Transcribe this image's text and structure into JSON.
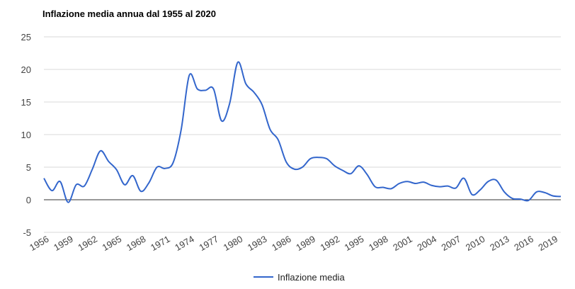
{
  "chart_data": {
    "type": "line",
    "title": "Inflazione media annua dal 1955 al 2020",
    "xlabel": "",
    "ylabel": "",
    "ylim": [
      -5,
      25
    ],
    "xlim": [
      1956,
      2020
    ],
    "yticks": [
      "25",
      "20",
      "15",
      "10",
      "5",
      "0",
      "-5"
    ],
    "ytick_values": [
      25,
      20,
      15,
      10,
      5,
      0,
      -5
    ],
    "xticks": [
      "1956",
      "1959",
      "1962",
      "1965",
      "1968",
      "1971",
      "1974",
      "1977",
      "1980",
      "1983",
      "1986",
      "1989",
      "1992",
      "1995",
      "1998",
      "2001",
      "2004",
      "2007",
      "2010",
      "2013",
      "2016",
      "2019"
    ],
    "xtick_values": [
      1956,
      1959,
      1962,
      1965,
      1968,
      1971,
      1974,
      1977,
      1980,
      1983,
      1986,
      1989,
      1992,
      1995,
      1998,
      2001,
      2004,
      2007,
      2010,
      2013,
      2016,
      2019
    ],
    "grid": true,
    "legend": "bottom",
    "series": [
      {
        "name": "Inflazione media",
        "color": "#3366cc",
        "x": [
          1956,
          1957,
          1958,
          1959,
          1960,
          1961,
          1962,
          1963,
          1964,
          1965,
          1966,
          1967,
          1968,
          1969,
          1970,
          1971,
          1972,
          1973,
          1974,
          1975,
          1976,
          1977,
          1978,
          1979,
          1980,
          1981,
          1982,
          1983,
          1984,
          1985,
          1986,
          1987,
          1988,
          1989,
          1990,
          1991,
          1992,
          1993,
          1994,
          1995,
          1996,
          1997,
          1998,
          1999,
          2000,
          2001,
          2002,
          2003,
          2004,
          2005,
          2006,
          2007,
          2008,
          2009,
          2010,
          2011,
          2012,
          2013,
          2014,
          2015,
          2016,
          2017,
          2018,
          2019,
          2020
        ],
        "y": [
          3.3,
          1.4,
          2.8,
          -0.4,
          2.3,
          2.1,
          4.7,
          7.5,
          5.9,
          4.6,
          2.3,
          3.7,
          1.3,
          2.6,
          5.0,
          4.8,
          5.7,
          10.8,
          19.1,
          17.0,
          16.8,
          17.0,
          12.1,
          14.8,
          21.1,
          17.8,
          16.5,
          14.6,
          10.8,
          9.2,
          5.8,
          4.7,
          5.0,
          6.3,
          6.5,
          6.3,
          5.2,
          4.5,
          4.0,
          5.2,
          3.9,
          2.0,
          1.9,
          1.7,
          2.5,
          2.8,
          2.5,
          2.7,
          2.2,
          2.0,
          2.1,
          1.8,
          3.3,
          0.8,
          1.5,
          2.8,
          3.0,
          1.2,
          0.2,
          0.1,
          -0.1,
          1.2,
          1.1,
          0.6,
          0.5
        ]
      }
    ]
  }
}
